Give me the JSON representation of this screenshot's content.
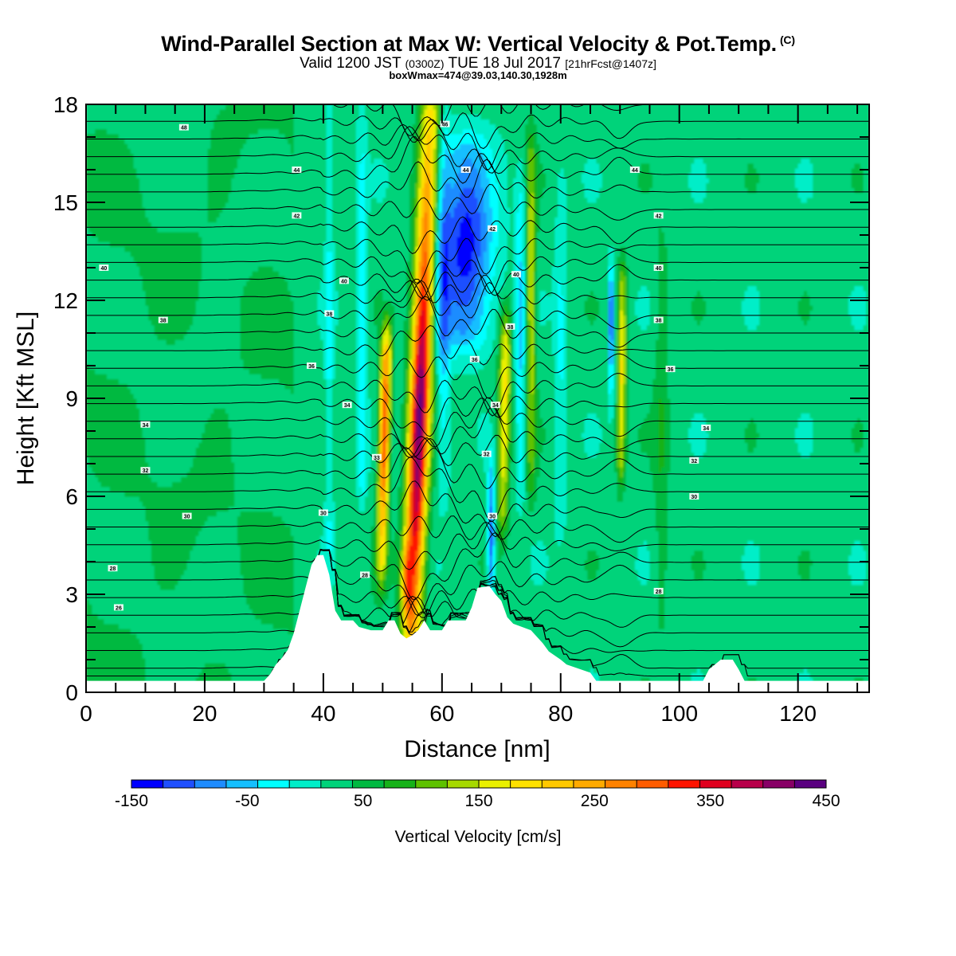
{
  "header": {
    "title": "Wind-Parallel Section at Max W: Vertical Velocity & Pot.Temp.",
    "title_mark": "(C)",
    "valid_prefix": "Valid 1200 JST",
    "valid_utc": "(0300Z)",
    "valid_date": "TUE 18 Jul 2017",
    "forecast": "[21hrFcst@1407z]",
    "box_info": "boxWmax=474@39.03,140.30,1928m"
  },
  "chart_data": {
    "type": "heatmap",
    "xlabel": "Distance [nm]",
    "ylabel": "Height [Kft MSL]",
    "xlim": [
      0,
      132
    ],
    "ylim": [
      0,
      18
    ],
    "x_ticks": [
      0,
      20,
      40,
      60,
      80,
      100,
      120
    ],
    "y_ticks": [
      0,
      3,
      6,
      9,
      12,
      15,
      18
    ],
    "x_tick_labels": [
      "0",
      "20",
      "40",
      "60",
      "80",
      "100",
      "120"
    ],
    "y_tick_labels": [
      "0",
      "3",
      "6",
      "9",
      "12",
      "15",
      "18"
    ],
    "colorbar": {
      "title": "Vertical Velocity [cm/s]",
      "min": -150,
      "max": 450,
      "step": 25,
      "labels": [
        "-150",
        "-50",
        "50",
        "150",
        "250",
        "350",
        "450"
      ],
      "label_values": [
        -150,
        -50,
        50,
        150,
        250,
        350,
        450
      ],
      "colors": [
        "#0000ff",
        "#1f4fff",
        "#1e8cff",
        "#15bfff",
        "#00ffff",
        "#00eec8",
        "#00d37a",
        "#00b941",
        "#16b219",
        "#5ec200",
        "#a6d900",
        "#eaf000",
        "#ffe100",
        "#ffc800",
        "#ffaa00",
        "#ff8200",
        "#ff5c00",
        "#ff1400",
        "#e0001e",
        "#b8004a",
        "#880066",
        "#5a0080"
      ]
    },
    "terrain": [
      [
        0,
        0.35
      ],
      [
        30,
        0.35
      ],
      [
        31,
        0.55
      ],
      [
        32,
        0.85
      ],
      [
        33,
        1.05
      ],
      [
        34,
        1.3
      ],
      [
        35,
        1.8
      ],
      [
        36,
        2.5
      ],
      [
        37,
        3.2
      ],
      [
        38,
        3.9
      ],
      [
        39,
        4.2
      ],
      [
        40,
        4.2
      ],
      [
        41,
        3.6
      ],
      [
        42,
        2.5
      ],
      [
        43,
        2.2
      ],
      [
        45,
        2.2
      ],
      [
        46,
        2.0
      ],
      [
        47,
        1.95
      ],
      [
        48,
        1.9
      ],
      [
        50,
        1.9
      ],
      [
        51,
        2.2
      ],
      [
        52,
        2.2
      ],
      [
        53,
        1.8
      ],
      [
        54,
        1.65
      ],
      [
        55,
        1.75
      ],
      [
        56,
        1.9
      ],
      [
        57,
        2.2
      ],
      [
        58,
        1.9
      ],
      [
        60,
        1.9
      ],
      [
        61,
        2.2
      ],
      [
        64,
        2.2
      ],
      [
        65,
        2.6
      ],
      [
        66,
        3.2
      ],
      [
        68,
        3.25
      ],
      [
        69,
        3.0
      ],
      [
        70,
        2.8
      ],
      [
        71,
        2.3
      ],
      [
        72,
        2.1
      ],
      [
        75,
        1.9
      ],
      [
        77,
        1.5
      ],
      [
        78,
        1.25
      ],
      [
        80,
        1.0
      ],
      [
        81,
        0.85
      ],
      [
        85,
        0.6
      ],
      [
        86,
        0.35
      ],
      [
        104,
        0.35
      ],
      [
        105,
        0.7
      ],
      [
        107,
        1.0
      ],
      [
        109,
        1.0
      ],
      [
        110,
        0.7
      ],
      [
        111,
        0.35
      ],
      [
        132,
        0.35
      ]
    ],
    "theta_labels": [
      {
        "x": 16.5,
        "y": 17.3,
        "v": 48
      },
      {
        "x": 35.5,
        "y": 16.0,
        "v": 44
      },
      {
        "x": 35.5,
        "y": 14.6,
        "v": 42
      },
      {
        "x": 3.0,
        "y": 13.0,
        "v": 40
      },
      {
        "x": 13.0,
        "y": 11.4,
        "v": 38
      },
      {
        "x": 43.5,
        "y": 12.6,
        "v": 40
      },
      {
        "x": 41.0,
        "y": 11.6,
        "v": 38
      },
      {
        "x": 38.0,
        "y": 10.0,
        "v": 36
      },
      {
        "x": 44.0,
        "y": 8.8,
        "v": 34
      },
      {
        "x": 10.0,
        "y": 8.2,
        "v": 34
      },
      {
        "x": 49.0,
        "y": 7.2,
        "v": 33
      },
      {
        "x": 10.0,
        "y": 6.8,
        "v": 32
      },
      {
        "x": 17.0,
        "y": 5.4,
        "v": 30
      },
      {
        "x": 40.0,
        "y": 5.5,
        "v": 30
      },
      {
        "x": 4.5,
        "y": 3.8,
        "v": 28
      },
      {
        "x": 47.0,
        "y": 3.6,
        "v": 28
      },
      {
        "x": 5.5,
        "y": 2.6,
        "v": 26
      },
      {
        "x": 60.5,
        "y": 17.4,
        "v": 46
      },
      {
        "x": 64.0,
        "y": 16.0,
        "v": 44
      },
      {
        "x": 68.5,
        "y": 14.2,
        "v": 42
      },
      {
        "x": 72.5,
        "y": 12.8,
        "v": 40
      },
      {
        "x": 71.5,
        "y": 11.2,
        "v": 38
      },
      {
        "x": 65.5,
        "y": 10.2,
        "v": 36
      },
      {
        "x": 69.0,
        "y": 8.8,
        "v": 34
      },
      {
        "x": 67.5,
        "y": 7.3,
        "v": 32
      },
      {
        "x": 68.5,
        "y": 5.4,
        "v": 30
      },
      {
        "x": 92.5,
        "y": 16.0,
        "v": 44
      },
      {
        "x": 96.5,
        "y": 14.6,
        "v": 42
      },
      {
        "x": 96.5,
        "y": 13.0,
        "v": 40
      },
      {
        "x": 96.5,
        "y": 11.4,
        "v": 38
      },
      {
        "x": 98.5,
        "y": 9.9,
        "v": 36
      },
      {
        "x": 104.5,
        "y": 8.1,
        "v": 34
      },
      {
        "x": 102.5,
        "y": 7.1,
        "v": 32
      },
      {
        "x": 102.5,
        "y": 6.0,
        "v": 30
      },
      {
        "x": 96.5,
        "y": 3.1,
        "v": 28
      }
    ]
  }
}
